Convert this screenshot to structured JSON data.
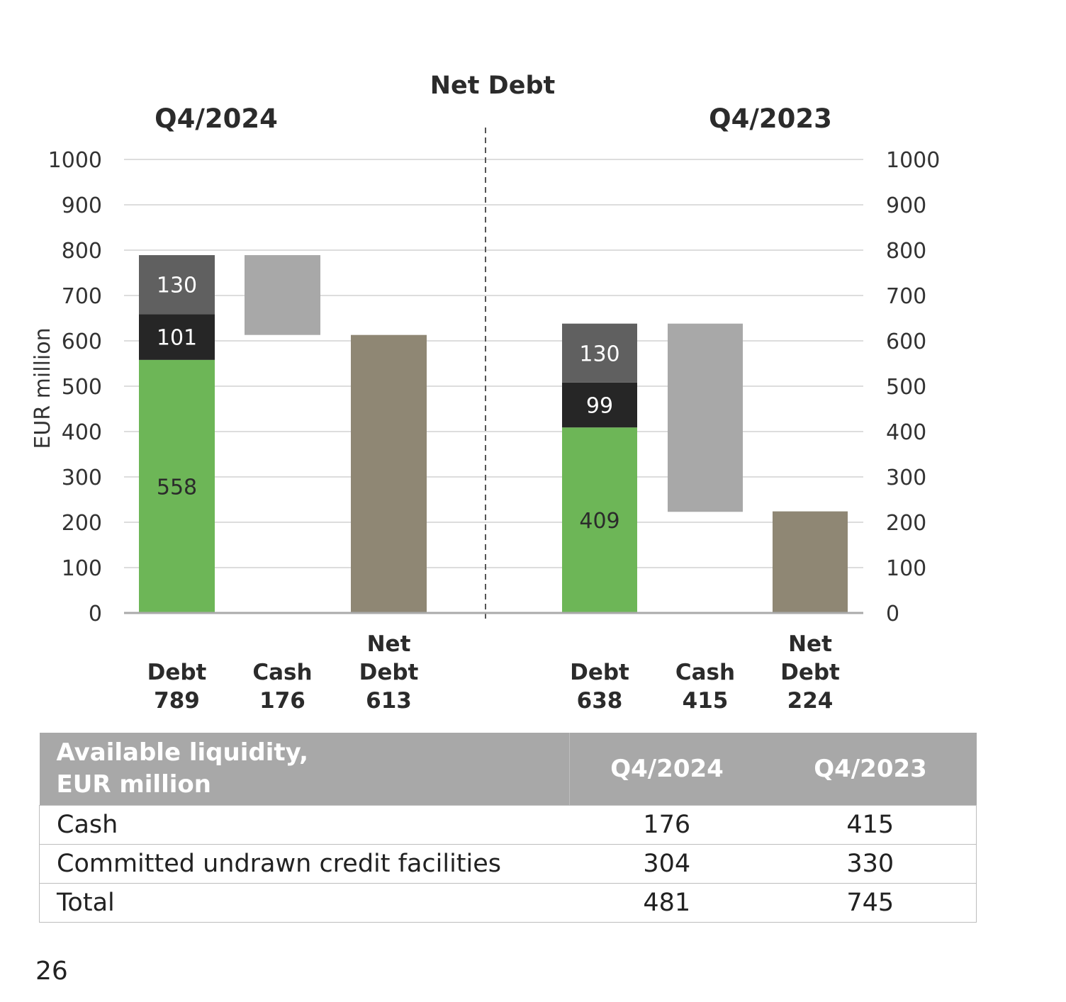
{
  "chart_data": {
    "type": "bar",
    "title": "Net Debt",
    "ylabel": "EUR million",
    "ylim": [
      0,
      1000
    ],
    "yticks": [
      0,
      100,
      200,
      300,
      400,
      500,
      600,
      700,
      800,
      900,
      1000
    ],
    "yticks_text": [
      "0",
      "100",
      "200",
      "300",
      "400",
      "500",
      "600",
      "700",
      "800",
      "900",
      "1000"
    ],
    "grid": true,
    "colors": {
      "green": "#6db657",
      "black": "#262626",
      "darkgrey": "#606060",
      "cash": "#a8a8a8",
      "netdebt": "#8f8774",
      "axis": "#aaaaaa",
      "grid": "#dddddd"
    },
    "panels": [
      {
        "period": "Q4/2024",
        "debt": {
          "label_lines": [
            "Debt",
            "789"
          ],
          "total": 789,
          "segments": [
            558,
            101,
            130
          ],
          "segment_labels": [
            "558",
            "101",
            "130"
          ]
        },
        "cash": {
          "label_lines": [
            "Cash",
            "176"
          ],
          "from": 613,
          "to": 789
        },
        "net_debt": {
          "label_lines": [
            "Net",
            "Debt",
            "613"
          ],
          "value": 613
        }
      },
      {
        "period": "Q4/2023",
        "debt": {
          "label_lines": [
            "Debt",
            "638"
          ],
          "total": 638,
          "segments": [
            409,
            99,
            130
          ],
          "segment_labels": [
            "409",
            "99",
            "130"
          ]
        },
        "cash": {
          "label_lines": [
            "Cash",
            "415"
          ],
          "from": 223,
          "to": 638
        },
        "net_debt": {
          "label_lines": [
            "Net",
            "Debt",
            "224"
          ],
          "value": 224
        }
      }
    ]
  },
  "table": {
    "header_line1": "Available liquidity,",
    "header_line2": "EUR million",
    "col1": "Q4/2024",
    "col2": "Q4/2023",
    "rows": [
      {
        "label": "Cash",
        "v1": "176",
        "v2": "415"
      },
      {
        "label": "Committed undrawn credit facilities",
        "v1": "304",
        "v2": "330"
      },
      {
        "label": "Total",
        "v1": "481",
        "v2": "745"
      }
    ]
  },
  "page_number": "26"
}
